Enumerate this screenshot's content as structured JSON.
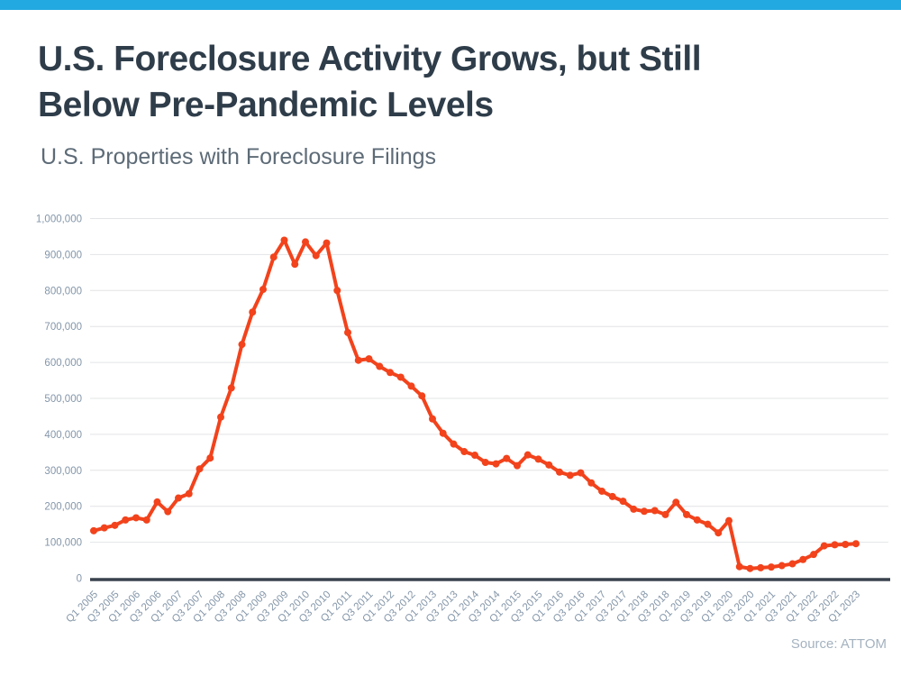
{
  "page": {
    "title_line1": "U.S. Foreclosure Activity Grows, but Still",
    "title_line2": "Below Pre-Pandemic Levels",
    "subtitle": "U.S. Properties with Foreclosure Filings",
    "source": "Source: ATTOM",
    "accent_bar_color": "#23a9e1",
    "background_color": "#ffffff"
  },
  "chart_data": {
    "type": "line",
    "title": "U.S. Foreclosure Activity Grows, but Still Below Pre-Pandemic Levels",
    "subtitle": "U.S. Properties with Foreclosure Filings",
    "xlabel": "",
    "ylabel": "",
    "ylim": [
      0,
      1000000
    ],
    "grid": "horizontal",
    "legend_position": "none",
    "line_color": "#f2431c",
    "line_width": 4,
    "marker": "circle",
    "marker_radius": 4,
    "gridline_color": "#e3e4e6",
    "axis_line_color": "#39424e",
    "tick_label_color": "#8496a9",
    "x_tick_every": 2,
    "y_ticks": [
      {
        "value": 0,
        "label": "0"
      },
      {
        "value": 100000,
        "label": "100,000"
      },
      {
        "value": 200000,
        "label": "200,000"
      },
      {
        "value": 300000,
        "label": "300,000"
      },
      {
        "value": 400000,
        "label": "400,000"
      },
      {
        "value": 500000,
        "label": "500,000"
      },
      {
        "value": 600000,
        "label": "600,000"
      },
      {
        "value": 700000,
        "label": "700,000"
      },
      {
        "value": 800000,
        "label": "800,000"
      },
      {
        "value": 900000,
        "label": "900,000"
      },
      {
        "value": 1000000,
        "label": "1,000,000"
      }
    ],
    "x": [
      "Q1 2005",
      "Q2 2005",
      "Q3 2005",
      "Q4 2005",
      "Q1 2006",
      "Q2 2006",
      "Q3 2006",
      "Q4 2006",
      "Q1 2007",
      "Q2 2007",
      "Q3 2007",
      "Q4 2007",
      "Q1 2008",
      "Q2 2008",
      "Q3 2008",
      "Q4 2008",
      "Q1 2009",
      "Q2 2009",
      "Q3 2009",
      "Q4 2009",
      "Q1 2010",
      "Q2 2010",
      "Q3 2010",
      "Q4 2010",
      "Q1 2011",
      "Q2 2011",
      "Q3 2011",
      "Q4 2011",
      "Q1 2012",
      "Q2 2012",
      "Q3 2012",
      "Q4 2012",
      "Q1 2013",
      "Q2 2013",
      "Q3 2013",
      "Q4 2013",
      "Q1 2014",
      "Q2 2014",
      "Q3 2014",
      "Q4 2014",
      "Q1 2015",
      "Q2 2015",
      "Q3 2015",
      "Q4 2015",
      "Q1 2016",
      "Q2 2016",
      "Q3 2016",
      "Q4 2016",
      "Q1 2017",
      "Q2 2017",
      "Q3 2017",
      "Q4 2017",
      "Q1 2018",
      "Q2 2018",
      "Q3 2018",
      "Q4 2018",
      "Q1 2019",
      "Q2 2019",
      "Q3 2019",
      "Q4 2019",
      "Q1 2020",
      "Q2 2020",
      "Q3 2020",
      "Q4 2020",
      "Q1 2021",
      "Q2 2021",
      "Q3 2021",
      "Q4 2021",
      "Q1 2022",
      "Q2 2022",
      "Q3 2022",
      "Q4 2022",
      "Q1 2023"
    ],
    "series": [
      {
        "name": "U.S. Properties with Foreclosure Filings",
        "values": [
          132000,
          140000,
          147000,
          162000,
          168000,
          162000,
          212000,
          185000,
          223000,
          235000,
          304000,
          334000,
          448000,
          529000,
          650000,
          740000,
          803000,
          893000,
          940000,
          873000,
          935000,
          897000,
          932000,
          800000,
          683000,
          606000,
          610000,
          589000,
          572000,
          559000,
          534000,
          507000,
          443000,
          403000,
          373000,
          352000,
          342000,
          322000,
          318000,
          333000,
          313000,
          343000,
          331000,
          315000,
          295000,
          286000,
          293000,
          265000,
          242000,
          227000,
          214000,
          192000,
          186000,
          188000,
          177000,
          211000,
          177000,
          162000,
          150000,
          126000,
          160000,
          32000,
          27000,
          29000,
          31000,
          35000,
          40000,
          52000,
          66000,
          90000,
          93000,
          94000,
          96000
        ]
      }
    ]
  }
}
